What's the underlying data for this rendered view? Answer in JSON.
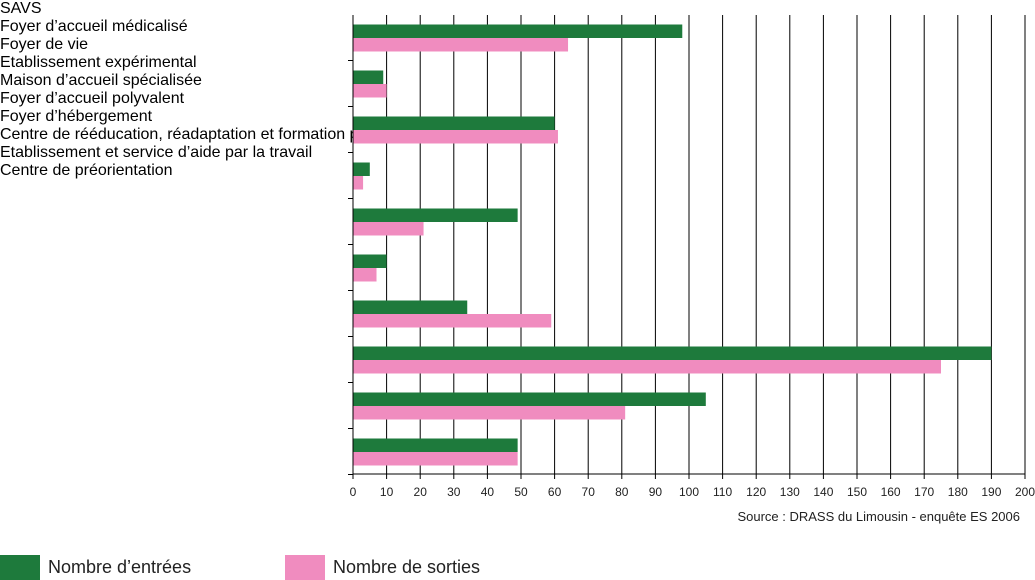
{
  "chart_data": {
    "type": "hbar",
    "source": "Source : DRASS du Limousin - enquête ES 2006",
    "categories": [
      "SAVS",
      "Foyer d’accueil médicalisé",
      "Foyer de vie",
      "Etablissement expérimental",
      "Maison d’accueil spécialisée",
      "Foyer d’accueil polyvalent",
      "Foyer d’hébergement",
      "Centre de rééducation, réadaptation\net formation professionnelle",
      "Etablissement et service d’aide par la travail",
      "Centre de préorientation"
    ],
    "series": [
      {
        "name": "Nombre d’entrées",
        "color": "#1e7a3c",
        "values": [
          98,
          9,
          60,
          5,
          49,
          10,
          34,
          190,
          105,
          49
        ]
      },
      {
        "name": "Nombre de sorties",
        "color": "#f08cbf",
        "values": [
          64,
          10,
          61,
          3,
          21,
          7,
          59,
          175,
          81,
          49
        ]
      }
    ],
    "xlim": [
      0,
      200
    ],
    "xticks": [
      0,
      10,
      20,
      30,
      40,
      50,
      60,
      70,
      80,
      90,
      100,
      110,
      120,
      130,
      140,
      150,
      160,
      170,
      180,
      190,
      200
    ],
    "grid": true
  }
}
